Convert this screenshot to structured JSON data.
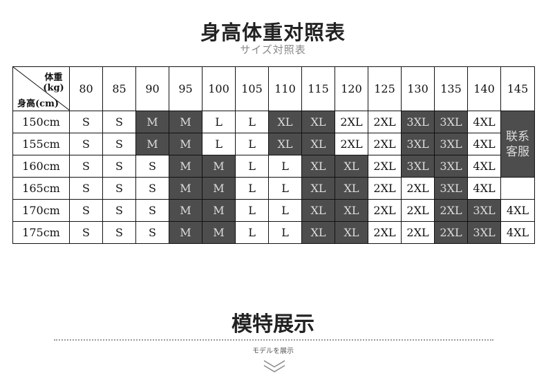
{
  "header": {
    "title": "身高体重对照表",
    "subtitle": "サイズ対照表"
  },
  "table": {
    "corner": {
      "weight_label": "体重(kg)",
      "height_label": "身高(cm)"
    },
    "weights": [
      "80",
      "85",
      "90",
      "95",
      "100",
      "105",
      "110",
      "115",
      "120",
      "125",
      "130",
      "135",
      "140",
      "145"
    ],
    "shade_color": "#4d4d4d",
    "rows": [
      {
        "height": "150cm",
        "cells": [
          {
            "v": "S"
          },
          {
            "v": "S"
          },
          {
            "v": "M",
            "shaded": true
          },
          {
            "v": "M",
            "shaded": true
          },
          {
            "v": "L"
          },
          {
            "v": "L"
          },
          {
            "v": "XL",
            "shaded": true
          },
          {
            "v": "XL",
            "shaded": true
          },
          {
            "v": "2XL"
          },
          {
            "v": "2XL"
          },
          {
            "v": "3XL",
            "shaded": true
          },
          {
            "v": "3XL",
            "shaded": true
          },
          {
            "v": "4XL"
          },
          {
            "v": "联系客服",
            "shaded": true,
            "rowspan": 3
          }
        ]
      },
      {
        "height": "155cm",
        "cells": [
          {
            "v": "S"
          },
          {
            "v": "S"
          },
          {
            "v": "M",
            "shaded": true
          },
          {
            "v": "M",
            "shaded": true
          },
          {
            "v": "L"
          },
          {
            "v": "L"
          },
          {
            "v": "XL",
            "shaded": true
          },
          {
            "v": "XL",
            "shaded": true
          },
          {
            "v": "2XL"
          },
          {
            "v": "2XL"
          },
          {
            "v": "3XL",
            "shaded": true
          },
          {
            "v": "3XL",
            "shaded": true
          },
          {
            "v": "4XL"
          }
        ]
      },
      {
        "height": "160cm",
        "cells": [
          {
            "v": "S"
          },
          {
            "v": "S"
          },
          {
            "v": "S"
          },
          {
            "v": "M",
            "shaded": true
          },
          {
            "v": "M",
            "shaded": true
          },
          {
            "v": "L"
          },
          {
            "v": "L"
          },
          {
            "v": "XL",
            "shaded": true
          },
          {
            "v": "XL",
            "shaded": true
          },
          {
            "v": "2XL"
          },
          {
            "v": "3XL",
            "shaded": true
          },
          {
            "v": "3XL",
            "shaded": true
          },
          {
            "v": "4XL"
          }
        ]
      },
      {
        "height": "165cm",
        "cells": [
          {
            "v": "S"
          },
          {
            "v": "S"
          },
          {
            "v": "S"
          },
          {
            "v": "M",
            "shaded": true
          },
          {
            "v": "M",
            "shaded": true
          },
          {
            "v": "L"
          },
          {
            "v": "L"
          },
          {
            "v": "XL",
            "shaded": true
          },
          {
            "v": "XL",
            "shaded": true
          },
          {
            "v": "2XL"
          },
          {
            "v": "2XL"
          },
          {
            "v": "3XL",
            "shaded": true
          },
          {
            "v": "4XL"
          },
          {
            "v": ""
          }
        ]
      },
      {
        "height": "170cm",
        "cells": [
          {
            "v": "S"
          },
          {
            "v": "S"
          },
          {
            "v": "S"
          },
          {
            "v": "M",
            "shaded": true
          },
          {
            "v": "M",
            "shaded": true
          },
          {
            "v": "L"
          },
          {
            "v": "L"
          },
          {
            "v": "XL",
            "shaded": true
          },
          {
            "v": "XL",
            "shaded": true
          },
          {
            "v": "2XL"
          },
          {
            "v": "2XL"
          },
          {
            "v": "2XL",
            "shaded": true
          },
          {
            "v": "3XL",
            "shaded": true
          },
          {
            "v": "4XL"
          }
        ]
      },
      {
        "height": "175cm",
        "cells": [
          {
            "v": "S"
          },
          {
            "v": "S"
          },
          {
            "v": "S"
          },
          {
            "v": "M",
            "shaded": true
          },
          {
            "v": "M",
            "shaded": true
          },
          {
            "v": "L"
          },
          {
            "v": "L"
          },
          {
            "v": "XL",
            "shaded": true
          },
          {
            "v": "XL",
            "shaded": true
          },
          {
            "v": "2XL"
          },
          {
            "v": "2XL"
          },
          {
            "v": "2XL",
            "shaded": true
          },
          {
            "v": "3XL",
            "shaded": true
          },
          {
            "v": "4XL"
          }
        ]
      }
    ]
  },
  "section": {
    "title": "模特展示",
    "subtitle": "モデルを展示",
    "icon": "double-chevron-down-icon"
  }
}
